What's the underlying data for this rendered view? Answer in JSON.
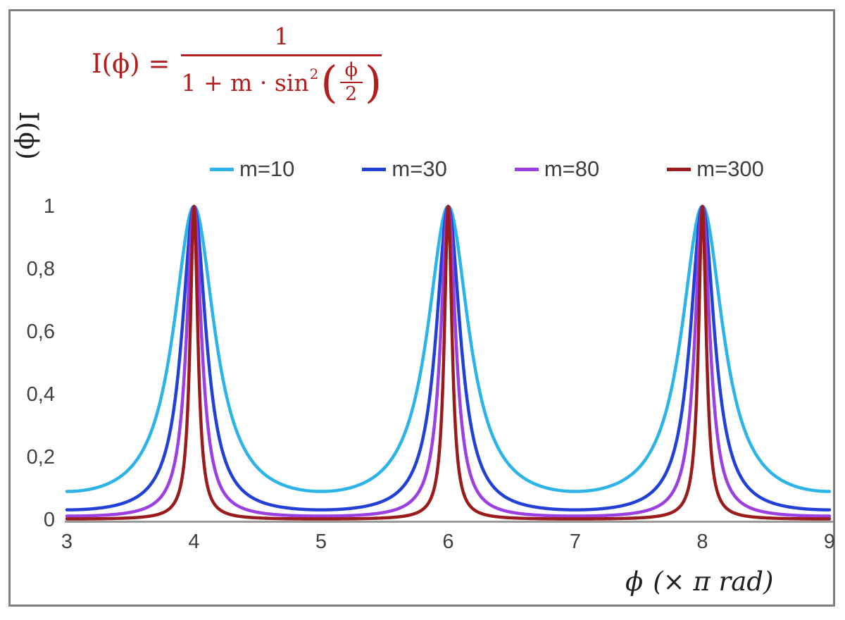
{
  "chart_data": {
    "type": "line",
    "function": "I(phi) = 1 / (1 + m * sin^2(phi/2)); x axis plots phi in units of pi rad, so I = 1 / (1 + m * sin^2(x*pi/2))",
    "title": "",
    "ylabel": "I(ϕ)",
    "xlabel_phi": "ϕ",
    "xlabel_units": "(× π rad)",
    "xlim": [
      3,
      9
    ],
    "ylim": [
      0,
      1
    ],
    "peaks_at_x": [
      4,
      6,
      8
    ],
    "peak_value": 1,
    "grid": false,
    "legend_position": "top",
    "axis_color": "#9a9a9a",
    "frame_color": "#808080",
    "tick_color": "#404040",
    "x_ticks": [
      {
        "label": "3",
        "value": 3
      },
      {
        "label": "4",
        "value": 4
      },
      {
        "label": "5",
        "value": 5
      },
      {
        "label": "6",
        "value": 6
      },
      {
        "label": "7",
        "value": 7
      },
      {
        "label": "8",
        "value": 8
      },
      {
        "label": "9",
        "value": 9
      }
    ],
    "y_ticks": [
      {
        "label": "0",
        "value": 0
      },
      {
        "label": "0,2",
        "value": 0.2
      },
      {
        "label": "0,4",
        "value": 0.4
      },
      {
        "label": "0,6",
        "value": 0.6
      },
      {
        "label": "0,8",
        "value": 0.8
      },
      {
        "label": "1",
        "value": 1
      }
    ],
    "series": [
      {
        "name": "m=10",
        "m": 10,
        "color": "#2cb3e8"
      },
      {
        "name": "m=30",
        "m": 30,
        "color": "#2040d6"
      },
      {
        "name": "m=80",
        "m": 80,
        "color": "#9b3fe2"
      },
      {
        "name": "m=300",
        "m": 300,
        "color": "#9a1b1b"
      }
    ]
  },
  "formula": {
    "lhs": "I(ϕ) =",
    "numerator": "1",
    "den_prefix": "1 + m · sin",
    "den_exponent": "2",
    "paren_open": "(",
    "paren_close": ")",
    "inner_num": "ϕ",
    "inner_den": "2",
    "color": "#b01e1e"
  }
}
